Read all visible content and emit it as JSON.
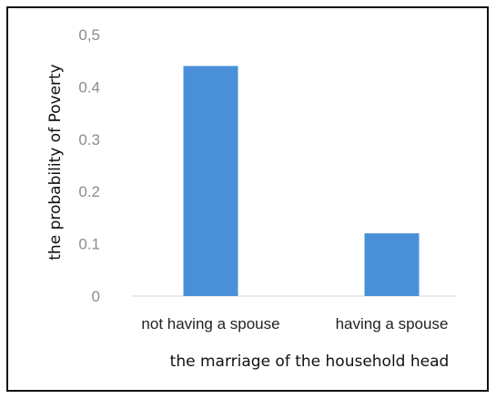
{
  "chart_data": {
    "type": "bar",
    "title": "",
    "xlabel": "the marriage of the household head",
    "ylabel": "the probability of Poverty",
    "categories": [
      "not having a spouse",
      "having a spouse"
    ],
    "values": [
      0.44,
      0.12
    ],
    "ylim": [
      0,
      0.5
    ],
    "yticks": [
      0,
      0.1,
      0.2,
      0.3,
      0.4,
      0.5
    ],
    "ytick_labels": [
      "0",
      "0.1",
      "0.2",
      "0.3",
      "0.4",
      "0,5"
    ],
    "grid": false,
    "legend": "none",
    "bar_color": "#4a90d9",
    "axis_color": "#d9d9d9"
  }
}
